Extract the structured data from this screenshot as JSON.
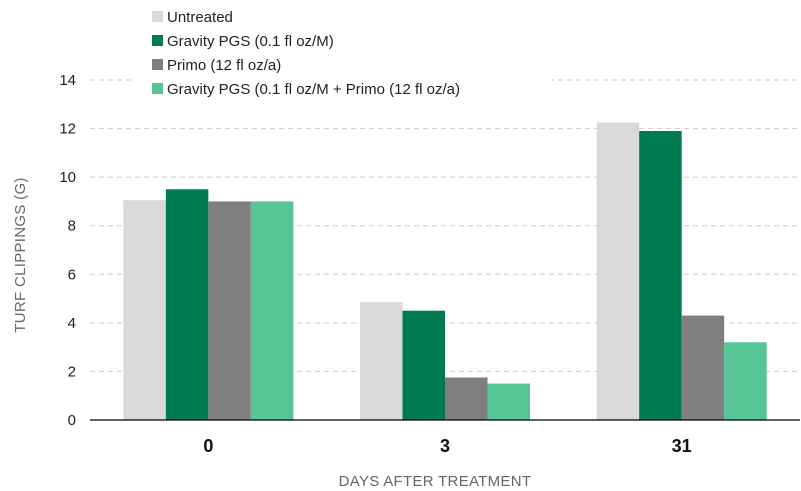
{
  "chart_data": {
    "type": "bar",
    "title": "",
    "xlabel": "DAYS AFTER TREATMENT",
    "ylabel": "TURF CLIPPINGS (G)",
    "categories": [
      "0",
      "3",
      "31"
    ],
    "ylim": [
      0,
      14
    ],
    "yticks": [
      0,
      2,
      4,
      6,
      8,
      10,
      12,
      14
    ],
    "grid": true,
    "legend_position": "top-left",
    "series": [
      {
        "name": "Untreated",
        "color": "#d9d9d9",
        "values": [
          9.05,
          4.85,
          12.25
        ]
      },
      {
        "name": "Gravity PGS (0.1 fl oz/M)",
        "color": "#007a50",
        "values": [
          9.5,
          4.5,
          11.9
        ]
      },
      {
        "name": "Primo (12 fl oz/a)",
        "color": "#7f7f7f",
        "values": [
          9.0,
          1.75,
          4.3
        ]
      },
      {
        "name": "Gravity PGS (0.1 fl oz/M + Primo (12 fl oz/a)",
        "color": "#55c596",
        "values": [
          9.0,
          1.5,
          3.2
        ]
      }
    ]
  }
}
